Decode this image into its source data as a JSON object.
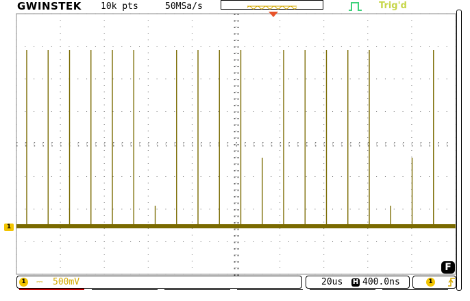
{
  "header": {
    "brand_logo": "GWINSTEK",
    "record_length": "10k pts",
    "sample_rate": "50MSa/s",
    "trigger_status": "Trig'd"
  },
  "display": {
    "grid": true,
    "channel_color": "#7a6a00",
    "trace_pulse_tops": [
      {
        "t": 1,
        "level": "high"
      },
      {
        "t": 2,
        "level": "high"
      },
      {
        "t": 3,
        "level": "high"
      },
      {
        "t": 4,
        "level": "high"
      },
      {
        "t": 5,
        "level": "high"
      },
      {
        "t": 6,
        "level": "high"
      },
      {
        "t": 7,
        "level": "runt"
      },
      {
        "t": 8,
        "level": "high"
      },
      {
        "t": 9,
        "level": "high"
      },
      {
        "t": 10,
        "level": "high"
      },
      {
        "t": 11,
        "level": "high"
      },
      {
        "t": 12,
        "level": "mid"
      },
      {
        "t": 13,
        "level": "high"
      },
      {
        "t": 14,
        "level": "high"
      },
      {
        "t": 15,
        "level": "high"
      },
      {
        "t": 16,
        "level": "high"
      },
      {
        "t": 17,
        "level": "high"
      },
      {
        "t": 18,
        "level": "runt"
      },
      {
        "t": 19,
        "level": "mid"
      },
      {
        "t": 20,
        "level": "high"
      }
    ]
  },
  "status_bar": {
    "ch1_label": "1",
    "ch1_coupling": "⎓",
    "ch1_scale": "500mV",
    "timebase": "20us",
    "horizontal_icon": "H",
    "horizontal_position": "400.0ns",
    "trigger_source_label": "1",
    "trigger_edge_icon": "rising-edge-icon"
  },
  "side": {
    "ch1_marker": "1",
    "f_button": "F"
  }
}
